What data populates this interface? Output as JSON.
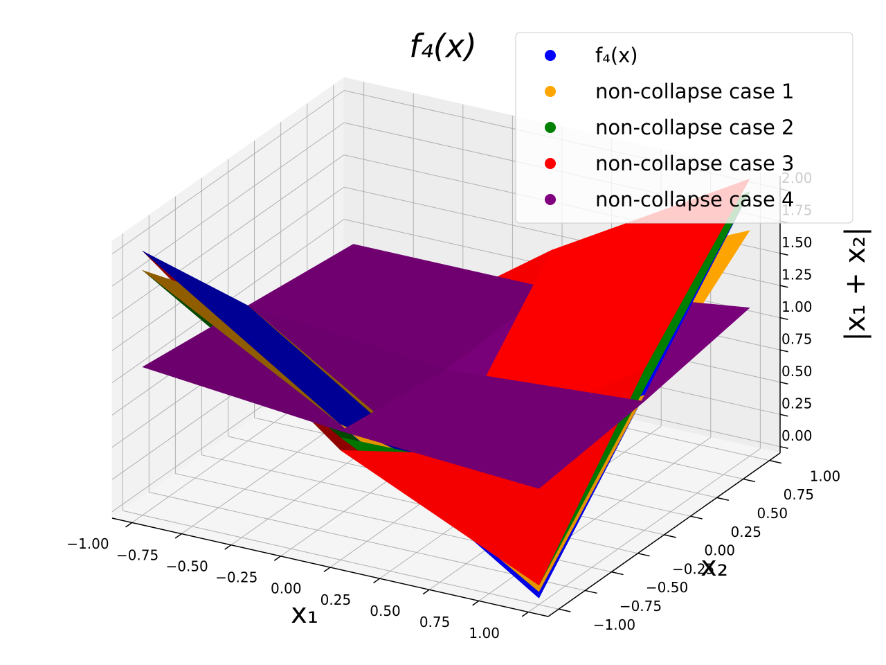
{
  "chart_data": {
    "type": "surface3d",
    "title": "f₄(x)",
    "xlabel": "x₁",
    "ylabel": "x₂",
    "zlabel": "|x₁ + x₂|",
    "x": [
      -1,
      0,
      1
    ],
    "y": [
      -1,
      0,
      1
    ],
    "xlim": [
      -1.1,
      1.1
    ],
    "ylim": [
      -1.1,
      1.1
    ],
    "zlim": [
      -0.05,
      2.1
    ],
    "xticks": [
      {
        "value": -1,
        "label": "−1.00"
      },
      {
        "value": -0.75,
        "label": "−0.75"
      },
      {
        "value": -0.5,
        "label": "−0.50"
      },
      {
        "value": -0.25,
        "label": "−0.25"
      },
      {
        "value": 0,
        "label": "0.00"
      },
      {
        "value": 0.25,
        "label": "0.25"
      },
      {
        "value": 0.5,
        "label": "0.50"
      },
      {
        "value": 0.75,
        "label": "0.75"
      },
      {
        "value": 1,
        "label": "1.00"
      }
    ],
    "yticks": [
      {
        "value": -1,
        "label": "−1.00"
      },
      {
        "value": -0.75,
        "label": "−0.75"
      },
      {
        "value": -0.5,
        "label": "−0.50"
      },
      {
        "value": -0.25,
        "label": "−0.25"
      },
      {
        "value": 0,
        "label": "0.00"
      },
      {
        "value": 0.25,
        "label": "0.25"
      },
      {
        "value": 0.5,
        "label": "0.50"
      },
      {
        "value": 0.75,
        "label": "0.75"
      },
      {
        "value": 1,
        "label": "1.00"
      }
    ],
    "zticks": [
      {
        "value": 0,
        "label": "0.00"
      },
      {
        "value": 0.25,
        "label": "0.25"
      },
      {
        "value": 0.5,
        "label": "0.50"
      },
      {
        "value": 0.75,
        "label": "0.75"
      },
      {
        "value": 1,
        "label": "1.00"
      },
      {
        "value": 1.25,
        "label": "1.25"
      },
      {
        "value": 1.5,
        "label": "1.50"
      },
      {
        "value": 1.75,
        "label": "1.75"
      },
      {
        "value": 2,
        "label": "2.00"
      }
    ],
    "grid": true,
    "legend": "upper right",
    "series": [
      {
        "name": "f₄(x)",
        "color": "#0000ff",
        "values": [
          [
            2,
            1,
            0
          ],
          [
            1,
            0,
            1
          ],
          [
            0,
            1,
            2
          ]
        ]
      },
      {
        "name": "non-collapse case 1",
        "color": "#ffa500",
        "values": [
          [
            1.85,
            1,
            0.05
          ],
          [
            1,
            0.05,
            1
          ],
          [
            0.05,
            1,
            1.7
          ]
        ]
      },
      {
        "name": "non-collapse case 2",
        "color": "#008000",
        "values": [
          [
            1.85,
            0.9,
            0.1
          ],
          [
            0.9,
            0.15,
            1.05
          ],
          [
            0.1,
            1.05,
            2
          ]
        ]
      },
      {
        "name": "non-collapse case 3",
        "color": "#ff0000",
        "values": [
          [
            2,
            0.8,
            0.1
          ],
          [
            0.8,
            0.2,
            1.2
          ],
          [
            0.1,
            1.2,
            2.1
          ]
        ]
      },
      {
        "name": "non-collapse case 4",
        "color": "#800080",
        "values": [
          [
            1.1,
            1,
            0.9
          ],
          [
            0.95,
            0.85,
            0.9
          ],
          [
            0.85,
            0.95,
            1.1
          ]
        ]
      }
    ]
  }
}
